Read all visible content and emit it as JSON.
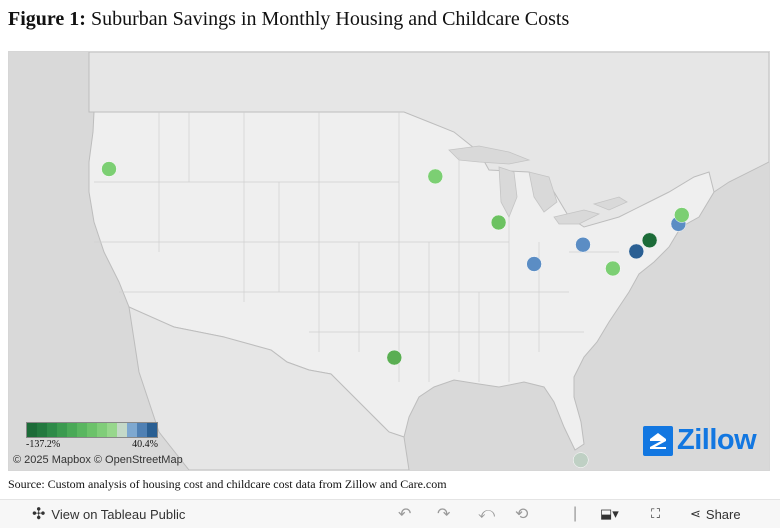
{
  "figure": {
    "label": "Figure 1:",
    "title": "Suburban Savings in Monthly Housing and Childcare Costs"
  },
  "map": {
    "locations": [
      {
        "lon": -122.7,
        "lat": 45.5,
        "color": "#7ccf73"
      },
      {
        "lon": -93.3,
        "lat": 45.0,
        "color": "#7ccf73"
      },
      {
        "lon": -87.6,
        "lat": 41.9,
        "color": "#6cc261"
      },
      {
        "lon": -97.0,
        "lat": 32.8,
        "color": "#5aae52"
      },
      {
        "lon": -84.4,
        "lat": 39.1,
        "color": "#5b8dc4"
      },
      {
        "lon": -80.0,
        "lat": 40.4,
        "color": "#5b8dc4"
      },
      {
        "lon": -77.3,
        "lat": 38.8,
        "color": "#7ccf73"
      },
      {
        "lon": -75.2,
        "lat": 39.95,
        "color": "#2a5f93"
      },
      {
        "lon": -74.0,
        "lat": 40.7,
        "color": "#1c6b38"
      },
      {
        "lon": -71.4,
        "lat": 41.8,
        "color": "#5b8dc4"
      },
      {
        "lon": -71.1,
        "lat": 42.4,
        "color": "#7ccf73"
      },
      {
        "lon": -80.2,
        "lat": 25.9,
        "color": "#bfd0c4"
      }
    ]
  },
  "legend": {
    "min_label": "-137.2%",
    "max_label": "40.4%",
    "colors": [
      "#1c6b38",
      "#23793f",
      "#2e8a48",
      "#3b9a4f",
      "#4aa957",
      "#5ab660",
      "#6cc26a",
      "#80cd79",
      "#97d78c",
      "#c4d9c8",
      "#7ea8d0",
      "#4f80b4",
      "#2a5f93"
    ]
  },
  "attribution": {
    "text": "© 2025 Mapbox © OpenStreetMap"
  },
  "logo": {
    "text": "Zillow"
  },
  "source": {
    "text": "Source: Custom analysis of housing cost and childcare cost data from Zillow and Care.com"
  },
  "toolbar": {
    "view_label": "View on Tableau Public",
    "share_label": "Share",
    "undo_icon": "undo-icon",
    "redo_icon": "redo-icon",
    "revert_icon": "revert-icon",
    "refresh_icon": "refresh-icon",
    "download_icon": "download-icon",
    "fullscreen_icon": "fullscreen-icon",
    "share_icon": "share-icon"
  }
}
